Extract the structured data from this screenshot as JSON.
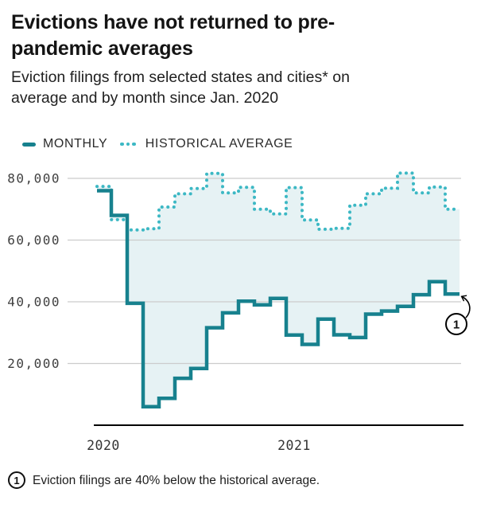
{
  "header": {
    "title_line1": "Evictions have not returned to pre-",
    "title_line2": "pandemic averages",
    "subtitle_line1": "Eviction filings from selected states and cities* on",
    "subtitle_line2": "average and by month since Jan. 2020"
  },
  "legend": {
    "monthly_label": "MONTHLY",
    "average_label": "HISTORICAL AVERAGE"
  },
  "chart_data": {
    "type": "line",
    "subtype": "step",
    "title": "Eviction filings from selected states and cities on average and by month since Jan. 2020",
    "x": [
      "Jan 2020",
      "Feb 2020",
      "Mar 2020",
      "Apr 2020",
      "May 2020",
      "Jun 2020",
      "Jul 2020",
      "Aug 2020",
      "Sep 2020",
      "Oct 2020",
      "Nov 2020",
      "Dec 2020",
      "Jan 2021",
      "Feb 2021",
      "Mar 2021",
      "Apr 2021",
      "May 2021",
      "Jun 2021",
      "Jul 2021",
      "Aug 2021",
      "Sep 2021",
      "Oct 2021",
      "Nov 2021"
    ],
    "series": [
      {
        "name": "MONTHLY",
        "style": "solid",
        "color": "#17818e",
        "values": [
          76000,
          68000,
          39500,
          6000,
          8700,
          15200,
          18400,
          31600,
          36400,
          40200,
          39000,
          41100,
          29200,
          26200,
          34400,
          29300,
          28400,
          36000,
          37000,
          38500,
          42300,
          46500,
          42500
        ]
      },
      {
        "name": "HISTORICAL AVERAGE",
        "style": "dotted",
        "color": "#3cb8c4",
        "values": [
          77400,
          66600,
          63300,
          63700,
          70700,
          75000,
          76700,
          81600,
          75300,
          77100,
          70000,
          68500,
          77000,
          66500,
          63500,
          63800,
          71300,
          75000,
          76800,
          81700,
          75300,
          77200,
          70000
        ]
      }
    ],
    "fill_between_color": "#e3f1f3",
    "grid": true,
    "gridline_color": "#cccccc",
    "ylim": [
      0,
      83000
    ],
    "yticks": [
      20000,
      40000,
      60000,
      80000
    ],
    "ytick_labels": [
      "20,000",
      "40,000",
      "60,000",
      "80,000"
    ],
    "xticks": [
      "2020",
      "2021"
    ],
    "xtick_month_index": [
      0,
      12
    ],
    "legend_position": "top"
  },
  "annotation": {
    "number": "1"
  },
  "footnote": {
    "number": "1",
    "text": "Eviction filings are 40% below the historical average."
  }
}
